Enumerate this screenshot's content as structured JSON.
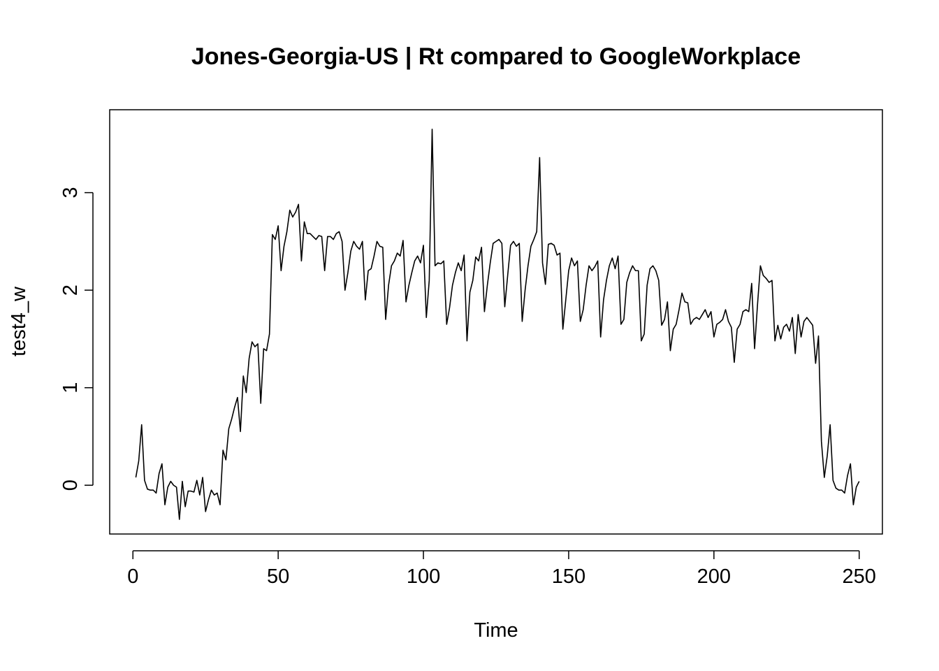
{
  "chart_data": {
    "type": "line",
    "title": "Jones-Georgia-US | Rt compared to GoogleWorkplace",
    "xlabel": "Time",
    "ylabel": "test4_w",
    "xlim": [
      -8,
      258
    ],
    "ylim": [
      -0.5,
      3.85
    ],
    "x_ticks": [
      "0",
      "50",
      "100",
      "150",
      "200",
      "250"
    ],
    "y_ticks": [
      "0",
      "1",
      "2",
      "3"
    ],
    "grid": false,
    "legend": "none",
    "line_color": "#000000",
    "x_start": 1,
    "x_step": 1,
    "values": [
      0.08,
      0.25,
      0.62,
      0.05,
      -0.04,
      -0.05,
      -0.05,
      -0.08,
      0.12,
      0.22,
      -0.2,
      -0.02,
      0.04,
      0.0,
      -0.02,
      -0.35,
      0.04,
      -0.22,
      -0.06,
      -0.06,
      -0.07,
      0.05,
      -0.1,
      0.08,
      -0.27,
      -0.15,
      -0.05,
      -0.1,
      -0.08,
      -0.2,
      0.36,
      0.26,
      0.58,
      0.68,
      0.8,
      0.9,
      0.55,
      1.12,
      0.95,
      1.3,
      1.47,
      1.42,
      1.45,
      0.84,
      1.4,
      1.38,
      1.55,
      2.57,
      2.52,
      2.66,
      2.2,
      2.45,
      2.6,
      2.82,
      2.75,
      2.8,
      2.88,
      2.3,
      2.7,
      2.58,
      2.58,
      2.55,
      2.52,
      2.56,
      2.55,
      2.2,
      2.55,
      2.55,
      2.52,
      2.58,
      2.6,
      2.5,
      2.0,
      2.18,
      2.4,
      2.5,
      2.45,
      2.42,
      2.5,
      1.9,
      2.2,
      2.22,
      2.35,
      2.5,
      2.45,
      2.44,
      1.7,
      2.05,
      2.25,
      2.3,
      2.38,
      2.35,
      2.51,
      1.88,
      2.05,
      2.18,
      2.3,
      2.35,
      2.28,
      2.46,
      1.72,
      2.1,
      3.65,
      2.25,
      2.28,
      2.27,
      2.3,
      1.65,
      1.82,
      2.05,
      2.18,
      2.28,
      2.2,
      2.36,
      1.48,
      1.98,
      2.1,
      2.34,
      2.3,
      2.44,
      1.78,
      2.05,
      2.28,
      2.48,
      2.5,
      2.52,
      2.48,
      1.83,
      2.15,
      2.46,
      2.5,
      2.45,
      2.48,
      1.68,
      2.0,
      2.25,
      2.45,
      2.52,
      2.6,
      3.36,
      2.28,
      2.06,
      2.47,
      2.48,
      2.46,
      2.36,
      2.38,
      1.6,
      1.9,
      2.2,
      2.33,
      2.25,
      2.3,
      1.68,
      1.8,
      2.05,
      2.25,
      2.2,
      2.24,
      2.3,
      1.52,
      1.9,
      2.1,
      2.25,
      2.33,
      2.22,
      2.35,
      1.65,
      1.7,
      2.08,
      2.18,
      2.25,
      2.2,
      2.2,
      1.48,
      1.55,
      2.05,
      2.22,
      2.25,
      2.2,
      2.1,
      1.64,
      1.7,
      1.88,
      1.38,
      1.6,
      1.65,
      1.8,
      1.97,
      1.88,
      1.87,
      1.65,
      1.7,
      1.72,
      1.7,
      1.75,
      1.8,
      1.72,
      1.78,
      1.52,
      1.65,
      1.67,
      1.7,
      1.8,
      1.68,
      1.62,
      1.26,
      1.6,
      1.65,
      1.78,
      1.8,
      1.78,
      2.07,
      1.4,
      1.85,
      2.25,
      2.15,
      2.12,
      2.08,
      2.1,
      1.48,
      1.64,
      1.5,
      1.62,
      1.65,
      1.58,
      1.72,
      1.35,
      1.75,
      1.52,
      1.68,
      1.72,
      1.68,
      1.64,
      1.25,
      1.53,
      0.45,
      0.08,
      0.3,
      0.62,
      0.05,
      -0.03,
      -0.05,
      -0.05,
      -0.08,
      0.1,
      0.22,
      -0.2,
      -0.02,
      0.04
    ]
  }
}
